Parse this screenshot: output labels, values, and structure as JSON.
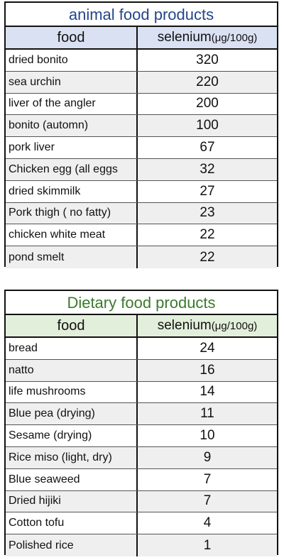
{
  "tables": [
    {
      "title": "animal food products",
      "col_food": "food",
      "col_selenium": "selenium",
      "col_unit": "(μg/100g)",
      "rows": [
        {
          "food": "dried bonito",
          "value": "320"
        },
        {
          "food": "sea urchin",
          "value": "220"
        },
        {
          "food": "liver of the angler",
          "value": "200"
        },
        {
          "food": "bonito (automn)",
          "value": "100"
        },
        {
          "food": "pork liver",
          "value": "67"
        },
        {
          "food": "Chicken egg (all eggs",
          "value": "32"
        },
        {
          "food": "dried skimmilk",
          "value": "27"
        },
        {
          "food": "Pork thigh ( no fatty)",
          "value": "23"
        },
        {
          "food": "chicken white meat",
          "value": "22"
        },
        {
          "food": "pond smelt",
          "value": "22"
        }
      ]
    },
    {
      "title": "Dietary food products",
      "col_food": "food",
      "col_selenium": "selenium",
      "col_unit": "(μg/100g)",
      "rows": [
        {
          "food": "bread",
          "value": "24"
        },
        {
          "food": "natto",
          "value": "16"
        },
        {
          "food": "life mushrooms",
          "value": "14"
        },
        {
          "food": "Blue pea (drying)",
          "value": "11"
        },
        {
          "food": "Sesame (drying)",
          "value": "10"
        },
        {
          "food": "Rice miso (light, dry)",
          "value": "9"
        },
        {
          "food": "Blue seaweed",
          "value": "7"
        },
        {
          "food": "Dried hijiki",
          "value": "7"
        },
        {
          "food": "Cotton tofu",
          "value": "4"
        },
        {
          "food": "Polished rice",
          "value": "1"
        }
      ]
    }
  ]
}
